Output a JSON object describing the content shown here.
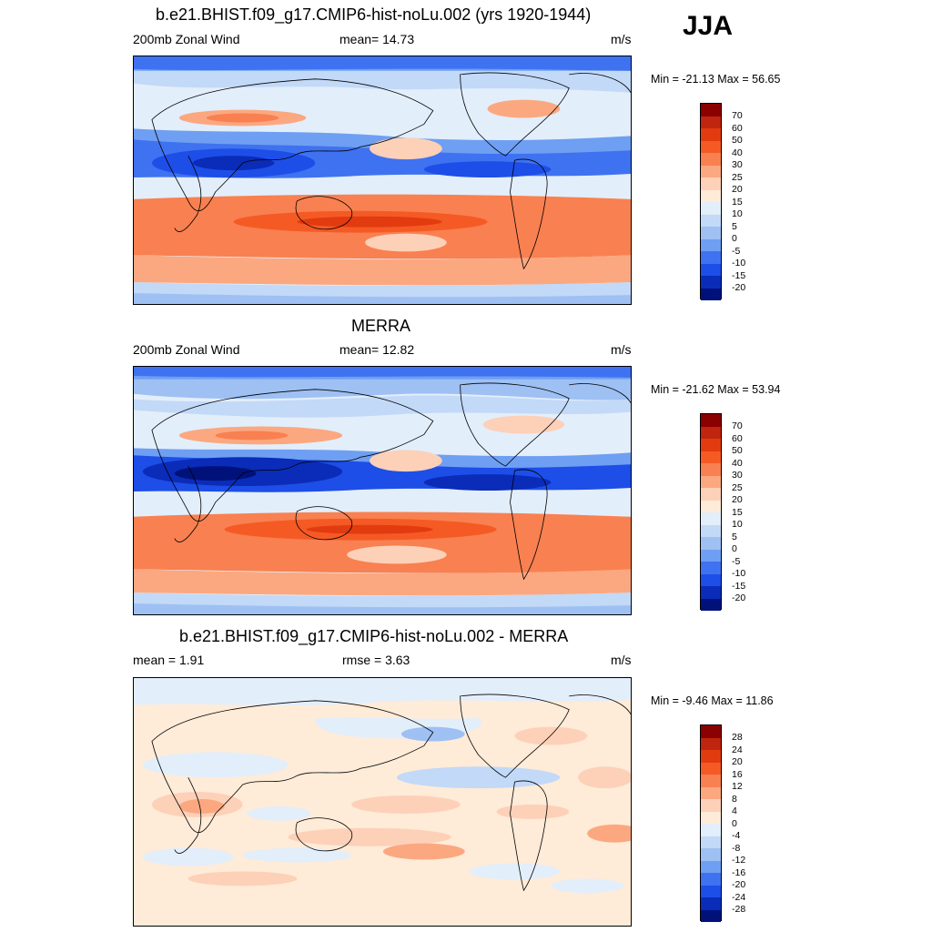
{
  "season": "JJA",
  "panels": [
    {
      "title": "b.e21.BHIST.f09_g17.CMIP6-hist-noLu.002 (yrs 1920-1944)",
      "left_label": "200mb Zonal Wind",
      "center_label": "mean=  14.73",
      "units": "m/s",
      "minmax": "Min = -21.13 Max =  56.65",
      "colorbar_labels": [
        "70",
        "60",
        "50",
        "40",
        "30",
        "25",
        "20",
        "15",
        "10",
        "5",
        "0",
        "-5",
        "-10",
        "-15",
        "-20"
      ]
    },
    {
      "title": "MERRA",
      "left_label": "200mb Zonal Wind",
      "center_label": "mean=  12.82",
      "units": "m/s",
      "minmax": "Min = -21.62 Max =  53.94",
      "colorbar_labels": [
        "70",
        "60",
        "50",
        "40",
        "30",
        "25",
        "20",
        "15",
        "10",
        "5",
        "0",
        "-5",
        "-10",
        "-15",
        "-20"
      ]
    },
    {
      "title": "b.e21.BHIST.f09_g17.CMIP6-hist-noLu.002 - MERRA",
      "left_label": "mean =    1.91",
      "center_label": "rmse =    3.63",
      "units": "m/s",
      "minmax": "Min =  -9.46 Max =  11.86",
      "colorbar_labels": [
        "28",
        "24",
        "20",
        "16",
        "12",
        "8",
        "4",
        "0",
        "-4",
        "-8",
        "-12",
        "-16",
        "-20",
        "-24",
        "-28"
      ]
    }
  ],
  "colors": {
    "scale": [
      "#8b0000",
      "#c0250f",
      "#e23b10",
      "#f55a25",
      "#f98050",
      "#fba880",
      "#fdd0b8",
      "#feebd8",
      "#e3eefb",
      "#c2d9f7",
      "#9ec0f3",
      "#6f9ff2",
      "#3f72f0",
      "#1d4ee8",
      "#0a2cb8",
      "#00127a"
    ]
  }
}
